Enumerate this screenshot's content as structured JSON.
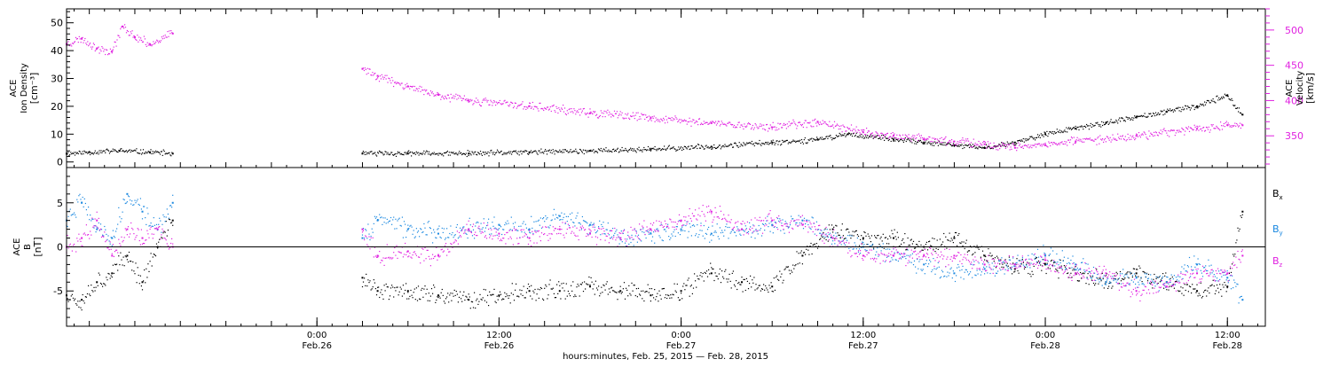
{
  "figure": {
    "xaxis_label": "hours:minutes, Feb. 25, 2015 — Feb. 28, 2015",
    "time_ticks": [
      {
        "hour": 30,
        "time": "0:00",
        "date": "Feb.26"
      },
      {
        "hour": 42,
        "time": "12:00",
        "date": "Feb.26"
      },
      {
        "hour": 54,
        "time": "0:00",
        "date": "Feb.27"
      },
      {
        "hour": 66,
        "time": "12:00",
        "date": "Feb.27"
      },
      {
        "hour": 78,
        "time": "0:00",
        "date": "Feb.28"
      },
      {
        "hour": 90,
        "time": "12:00",
        "date": "Feb.28"
      }
    ]
  },
  "chart_data": [
    {
      "type": "scatter",
      "panel": "plasma",
      "xlim_hours": [
        13.5,
        92.5
      ],
      "left_axis": {
        "label_lines": [
          "ACE",
          "Ion Density",
          "[cm⁻³]"
        ],
        "ylim": [
          -2,
          55
        ],
        "ticks": [
          0,
          10,
          20,
          30,
          40,
          50
        ],
        "color": "#000000"
      },
      "right_axis": {
        "label_lines": [
          "ACE",
          "Velocity",
          "[km/s]"
        ],
        "ylim": [
          305,
          530
        ],
        "ticks": [
          350,
          400,
          450,
          500
        ],
        "color": "#e020e0"
      },
      "data_gap_hours": [
        20.5,
        33
      ],
      "series": [
        {
          "axis": "left",
          "color": "#000000",
          "x": [
            13.5,
            15,
            17,
            19,
            20.5,
            33,
            36,
            40,
            44,
            48,
            52,
            56,
            60,
            63,
            65,
            68,
            70,
            72,
            74,
            76,
            78,
            80,
            82,
            84,
            86,
            88,
            90,
            91
          ],
          "y": [
            3,
            3.5,
            4,
            3.5,
            3,
            3,
            3,
            3,
            3.5,
            4,
            4.5,
            5.5,
            7,
            8,
            10,
            8,
            7,
            6,
            5,
            7,
            10,
            12,
            14,
            16,
            18,
            20,
            24,
            17
          ]
        },
        {
          "axis": "right",
          "color": "#e020e0",
          "x": [
            13.5,
            14.5,
            15.5,
            16.5,
            17.2,
            18,
            19,
            20.5,
            33,
            34,
            36,
            38,
            40,
            44,
            48,
            52,
            56,
            60,
            63,
            66,
            68,
            70,
            72,
            74,
            76,
            78,
            80,
            84,
            88,
            90,
            91
          ],
          "y": [
            480,
            488,
            474,
            470,
            505,
            490,
            480,
            495,
            445,
            435,
            420,
            408,
            400,
            392,
            382,
            375,
            368,
            362,
            370,
            355,
            350,
            345,
            342,
            338,
            333,
            337,
            342,
            350,
            360,
            365,
            365
          ]
        }
      ]
    },
    {
      "type": "scatter",
      "panel": "magnetic-field",
      "xlim_hours": [
        13.5,
        92.5
      ],
      "left_axis": {
        "label_lines": [
          "ACE",
          "B",
          "[nT]"
        ],
        "ylim": [
          -9,
          9
        ],
        "ticks": [
          -5,
          0,
          5
        ],
        "color": "#000000"
      },
      "zero_line": true,
      "data_gap_hours": [
        20.5,
        33
      ],
      "legend_position": "right-outside",
      "series": [
        {
          "name": "Bx",
          "color": "#000000",
          "x": [
            13.5,
            14.5,
            15.5,
            16.5,
            17.5,
            18.5,
            19.5,
            20.5,
            33,
            34,
            36,
            38,
            40,
            42,
            44,
            46,
            48,
            50,
            52,
            54,
            56,
            58,
            60,
            62,
            64,
            66,
            68,
            70,
            72,
            74,
            76,
            78,
            80,
            82,
            84,
            86,
            88,
            90,
            91
          ],
          "y": [
            -5.5,
            -6,
            -4,
            -3,
            -1,
            -4,
            0,
            3,
            -3.5,
            -5,
            -5,
            -5.5,
            -6,
            -5.5,
            -5,
            -5,
            -4.5,
            -5,
            -5.5,
            -5,
            -3,
            -4,
            -4.5,
            -1,
            2,
            1,
            1,
            0,
            1,
            -1,
            -2.5,
            -2,
            -3,
            -4,
            -3,
            -4,
            -5,
            -4.5,
            4
          ]
        },
        {
          "name": "By",
          "color": "#1a88e0",
          "x": [
            13.5,
            14.5,
            15.5,
            16.5,
            17.5,
            18.5,
            19.5,
            20.5,
            33,
            34,
            36,
            38,
            40,
            42,
            44,
            46,
            48,
            50,
            52,
            54,
            56,
            58,
            60,
            62,
            64,
            66,
            68,
            70,
            72,
            74,
            76,
            78,
            80,
            82,
            84,
            86,
            88,
            90,
            91
          ],
          "y": [
            3,
            5,
            2,
            1,
            6,
            4,
            2,
            5,
            1,
            3,
            2,
            1.5,
            2,
            2.5,
            2,
            3.5,
            2.5,
            1,
            1.5,
            2,
            1.5,
            2,
            2.5,
            3,
            1,
            0,
            -1,
            -2,
            -3,
            -2.5,
            -2,
            -1,
            -2,
            -4,
            -3.5,
            -4,
            -2,
            -3.5,
            -6
          ]
        },
        {
          "name": "Bz",
          "color": "#e020e0",
          "x": [
            13.5,
            14.5,
            15.5,
            16.5,
            17.5,
            18.5,
            19.5,
            20.5,
            33,
            34,
            36,
            38,
            40,
            42,
            44,
            46,
            48,
            50,
            52,
            54,
            56,
            58,
            60,
            62,
            64,
            66,
            68,
            70,
            72,
            74,
            76,
            78,
            80,
            82,
            84,
            86,
            88,
            90,
            91
          ],
          "y": [
            0,
            1,
            3,
            -1,
            2,
            1,
            2,
            0,
            2,
            -1,
            -0.5,
            -1,
            2,
            1.5,
            1,
            2,
            1.5,
            1,
            2,
            3,
            4,
            2,
            3,
            2.5,
            1,
            -1,
            -1,
            -1,
            -1,
            -2,
            -2,
            -1.5,
            -3,
            -3,
            -5,
            -4.5,
            -3,
            -3,
            -1
          ]
        }
      ]
    }
  ]
}
